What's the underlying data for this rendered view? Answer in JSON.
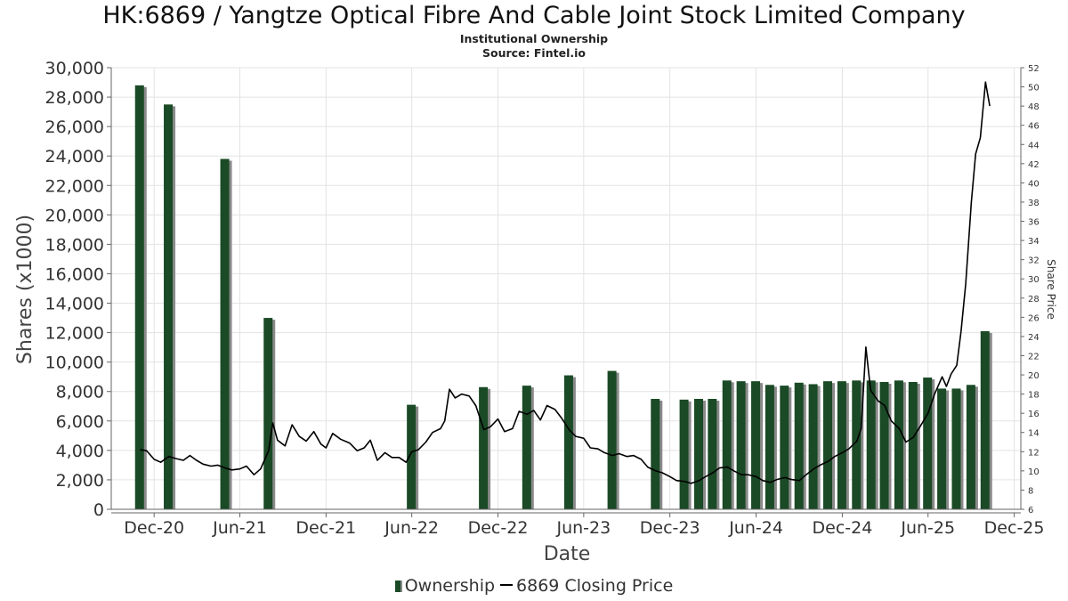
{
  "title": "HK:6869 / Yangtze Optical Fibre And Cable Joint Stock Limited Company",
  "subtitle": "Institutional Ownership",
  "source": "Source: Fintel.io",
  "legend": {
    "ownership": "Ownership",
    "price": "6869 Closing Price"
  },
  "colors": {
    "bar": "#1a4a26",
    "bar_shadow": "#8a8a8a",
    "line": "#000000",
    "grid": "#e3e3e3",
    "axis": "#666666"
  },
  "chart_data": {
    "type": "bar",
    "title": "HK:6869 / Yangtze Optical Fibre And Cable Joint Stock Limited Company",
    "xlabel": "Date",
    "ylabel": "Shares (x1000)",
    "y2label": "Share Price",
    "ylim": [
      0,
      30000
    ],
    "y2lim": [
      6,
      52
    ],
    "xlim": [
      "2020-09-01",
      "2025-12-15"
    ],
    "grid": true,
    "legend_position": "bottom",
    "y_ticks": [
      0,
      2000,
      4000,
      6000,
      8000,
      10000,
      12000,
      14000,
      16000,
      18000,
      20000,
      22000,
      24000,
      26000,
      28000,
      30000
    ],
    "y_tick_labels": [
      "0",
      "2,000",
      "4,000",
      "6,000",
      "8,000",
      "10,000",
      "12,000",
      "14,000",
      "16,000",
      "18,000",
      "20,000",
      "22,000",
      "24,000",
      "26,000",
      "28,000",
      "30,000"
    ],
    "y2_ticks": [
      6,
      8,
      10,
      12,
      14,
      16,
      18,
      20,
      22,
      24,
      26,
      28,
      30,
      32,
      34,
      36,
      38,
      40,
      42,
      44,
      46,
      48,
      50,
      52
    ],
    "x_ticks": [
      {
        "date": "2020-12-01",
        "label": "Dec-20"
      },
      {
        "date": "2021-06-01",
        "label": "Jun-21"
      },
      {
        "date": "2021-12-01",
        "label": "Dec-21"
      },
      {
        "date": "2022-06-01",
        "label": "Jun-22"
      },
      {
        "date": "2022-12-01",
        "label": "Dec-22"
      },
      {
        "date": "2023-06-01",
        "label": "Jun-23"
      },
      {
        "date": "2023-12-01",
        "label": "Dec-23"
      },
      {
        "date": "2024-06-01",
        "label": "Jun-24"
      },
      {
        "date": "2024-12-01",
        "label": "Dec-24"
      },
      {
        "date": "2025-06-01",
        "label": "Jun-25"
      },
      {
        "date": "2025-12-01",
        "label": "Dec-25"
      }
    ],
    "series": [
      {
        "name": "Ownership",
        "type": "bar",
        "axis": "left",
        "points": [
          {
            "x": "2020-10-31",
            "y": 28800
          },
          {
            "x": "2020-12-31",
            "y": 27500
          },
          {
            "x": "2021-04-30",
            "y": 23800
          },
          {
            "x": "2021-07-31",
            "y": 13000
          },
          {
            "x": "2022-05-31",
            "y": 7100
          },
          {
            "x": "2022-10-31",
            "y": 8300
          },
          {
            "x": "2023-01-31",
            "y": 8400
          },
          {
            "x": "2023-04-30",
            "y": 9100
          },
          {
            "x": "2023-07-31",
            "y": 9400
          },
          {
            "x": "2023-10-31",
            "y": 7500
          },
          {
            "x": "2023-12-31",
            "y": 7450
          },
          {
            "x": "2024-01-31",
            "y": 7500
          },
          {
            "x": "2024-02-29",
            "y": 7500
          },
          {
            "x": "2024-03-31",
            "y": 8750
          },
          {
            "x": "2024-04-30",
            "y": 8700
          },
          {
            "x": "2024-05-31",
            "y": 8700
          },
          {
            "x": "2024-06-30",
            "y": 8450
          },
          {
            "x": "2024-07-31",
            "y": 8400
          },
          {
            "x": "2024-08-31",
            "y": 8600
          },
          {
            "x": "2024-09-30",
            "y": 8500
          },
          {
            "x": "2024-10-31",
            "y": 8700
          },
          {
            "x": "2024-11-30",
            "y": 8700
          },
          {
            "x": "2024-12-31",
            "y": 8750
          },
          {
            "x": "2025-01-31",
            "y": 8750
          },
          {
            "x": "2025-02-28",
            "y": 8650
          },
          {
            "x": "2025-03-31",
            "y": 8750
          },
          {
            "x": "2025-04-30",
            "y": 8650
          },
          {
            "x": "2025-05-31",
            "y": 8950
          },
          {
            "x": "2025-06-30",
            "y": 8200
          },
          {
            "x": "2025-07-31",
            "y": 8200
          },
          {
            "x": "2025-08-31",
            "y": 8450
          },
          {
            "x": "2025-09-30",
            "y": 12100
          }
        ]
      },
      {
        "name": "6869 Closing Price",
        "type": "line",
        "axis": "right",
        "points": [
          {
            "x": "2020-11-01",
            "y": 12.2
          },
          {
            "x": "2020-11-15",
            "y": 12.1
          },
          {
            "x": "2020-12-01",
            "y": 11.2
          },
          {
            "x": "2020-12-15",
            "y": 10.9
          },
          {
            "x": "2021-01-01",
            "y": 11.5
          },
          {
            "x": "2021-01-15",
            "y": 11.3
          },
          {
            "x": "2021-02-01",
            "y": 11.1
          },
          {
            "x": "2021-02-15",
            "y": 11.6
          },
          {
            "x": "2021-03-01",
            "y": 11.1
          },
          {
            "x": "2021-03-15",
            "y": 10.7
          },
          {
            "x": "2021-04-01",
            "y": 10.5
          },
          {
            "x": "2021-04-15",
            "y": 10.6
          },
          {
            "x": "2021-05-01",
            "y": 10.3
          },
          {
            "x": "2021-05-15",
            "y": 10.1
          },
          {
            "x": "2021-06-01",
            "y": 10.2
          },
          {
            "x": "2021-06-15",
            "y": 10.5
          },
          {
            "x": "2021-07-01",
            "y": 9.6
          },
          {
            "x": "2021-07-15",
            "y": 10.2
          },
          {
            "x": "2021-08-01",
            "y": 12.1
          },
          {
            "x": "2021-08-10",
            "y": 15.0
          },
          {
            "x": "2021-08-20",
            "y": 13.2
          },
          {
            "x": "2021-09-05",
            "y": 12.6
          },
          {
            "x": "2021-09-20",
            "y": 14.8
          },
          {
            "x": "2021-10-05",
            "y": 13.6
          },
          {
            "x": "2021-10-20",
            "y": 13.1
          },
          {
            "x": "2021-11-05",
            "y": 14.1
          },
          {
            "x": "2021-11-20",
            "y": 12.8
          },
          {
            "x": "2021-12-01",
            "y": 12.4
          },
          {
            "x": "2021-12-15",
            "y": 13.9
          },
          {
            "x": "2022-01-01",
            "y": 13.3
          },
          {
            "x": "2022-01-20",
            "y": 12.9
          },
          {
            "x": "2022-02-05",
            "y": 12.1
          },
          {
            "x": "2022-02-20",
            "y": 12.4
          },
          {
            "x": "2022-03-05",
            "y": 13.2
          },
          {
            "x": "2022-03-20",
            "y": 11.1
          },
          {
            "x": "2022-04-05",
            "y": 11.9
          },
          {
            "x": "2022-04-20",
            "y": 11.4
          },
          {
            "x": "2022-05-05",
            "y": 11.4
          },
          {
            "x": "2022-05-20",
            "y": 10.9
          },
          {
            "x": "2022-06-01",
            "y": 12.0
          },
          {
            "x": "2022-06-15",
            "y": 12.2
          },
          {
            "x": "2022-07-01",
            "y": 13.0
          },
          {
            "x": "2022-07-15",
            "y": 14.0
          },
          {
            "x": "2022-08-01",
            "y": 14.4
          },
          {
            "x": "2022-08-10",
            "y": 15.2
          },
          {
            "x": "2022-08-20",
            "y": 18.5
          },
          {
            "x": "2022-09-01",
            "y": 17.6
          },
          {
            "x": "2022-09-15",
            "y": 18.0
          },
          {
            "x": "2022-10-01",
            "y": 17.8
          },
          {
            "x": "2022-10-15",
            "y": 16.8
          },
          {
            "x": "2022-11-01",
            "y": 14.3
          },
          {
            "x": "2022-11-15",
            "y": 14.6
          },
          {
            "x": "2022-12-01",
            "y": 15.4
          },
          {
            "x": "2022-12-15",
            "y": 14.1
          },
          {
            "x": "2023-01-01",
            "y": 14.4
          },
          {
            "x": "2023-01-15",
            "y": 16.2
          },
          {
            "x": "2023-02-01",
            "y": 15.9
          },
          {
            "x": "2023-02-15",
            "y": 16.3
          },
          {
            "x": "2023-03-01",
            "y": 15.3
          },
          {
            "x": "2023-03-15",
            "y": 16.8
          },
          {
            "x": "2023-04-01",
            "y": 16.4
          },
          {
            "x": "2023-04-15",
            "y": 15.5
          },
          {
            "x": "2023-05-01",
            "y": 14.3
          },
          {
            "x": "2023-05-15",
            "y": 13.6
          },
          {
            "x": "2023-06-01",
            "y": 13.4
          },
          {
            "x": "2023-06-15",
            "y": 12.4
          },
          {
            "x": "2023-07-01",
            "y": 12.3
          },
          {
            "x": "2023-07-15",
            "y": 11.9
          },
          {
            "x": "2023-08-01",
            "y": 11.6
          },
          {
            "x": "2023-08-15",
            "y": 11.8
          },
          {
            "x": "2023-09-01",
            "y": 11.5
          },
          {
            "x": "2023-09-15",
            "y": 11.6
          },
          {
            "x": "2023-10-01",
            "y": 11.2
          },
          {
            "x": "2023-10-15",
            "y": 10.4
          },
          {
            "x": "2023-11-01",
            "y": 10.0
          },
          {
            "x": "2023-11-15",
            "y": 9.8
          },
          {
            "x": "2023-12-01",
            "y": 9.4
          },
          {
            "x": "2023-12-15",
            "y": 9.0
          },
          {
            "x": "2024-01-01",
            "y": 8.9
          },
          {
            "x": "2024-01-15",
            "y": 8.7
          },
          {
            "x": "2024-02-01",
            "y": 9.0
          },
          {
            "x": "2024-02-15",
            "y": 9.4
          },
          {
            "x": "2024-03-01",
            "y": 9.8
          },
          {
            "x": "2024-03-15",
            "y": 10.3
          },
          {
            "x": "2024-04-01",
            "y": 10.4
          },
          {
            "x": "2024-04-15",
            "y": 10.0
          },
          {
            "x": "2024-05-01",
            "y": 9.6
          },
          {
            "x": "2024-05-15",
            "y": 9.6
          },
          {
            "x": "2024-06-01",
            "y": 9.4
          },
          {
            "x": "2024-06-15",
            "y": 9.0
          },
          {
            "x": "2024-07-01",
            "y": 8.8
          },
          {
            "x": "2024-07-15",
            "y": 9.1
          },
          {
            "x": "2024-08-01",
            "y": 9.3
          },
          {
            "x": "2024-08-15",
            "y": 9.1
          },
          {
            "x": "2024-09-01",
            "y": 9.0
          },
          {
            "x": "2024-09-15",
            "y": 9.6
          },
          {
            "x": "2024-10-01",
            "y": 10.2
          },
          {
            "x": "2024-10-15",
            "y": 10.6
          },
          {
            "x": "2024-11-01",
            "y": 11.0
          },
          {
            "x": "2024-11-15",
            "y": 11.5
          },
          {
            "x": "2024-12-01",
            "y": 11.9
          },
          {
            "x": "2024-12-15",
            "y": 12.3
          },
          {
            "x": "2025-01-01",
            "y": 13.1
          },
          {
            "x": "2025-01-10",
            "y": 14.4
          },
          {
            "x": "2025-01-20",
            "y": 22.9
          },
          {
            "x": "2025-01-30",
            "y": 18.4
          },
          {
            "x": "2025-02-15",
            "y": 17.3
          },
          {
            "x": "2025-03-01",
            "y": 16.8
          },
          {
            "x": "2025-03-15",
            "y": 15.2
          },
          {
            "x": "2025-04-01",
            "y": 14.4
          },
          {
            "x": "2025-04-15",
            "y": 13.0
          },
          {
            "x": "2025-05-01",
            "y": 13.5
          },
          {
            "x": "2025-05-15",
            "y": 14.6
          },
          {
            "x": "2025-06-01",
            "y": 16.0
          },
          {
            "x": "2025-06-15",
            "y": 18.0
          },
          {
            "x": "2025-07-01",
            "y": 19.8
          },
          {
            "x": "2025-07-10",
            "y": 18.8
          },
          {
            "x": "2025-07-20",
            "y": 20.1
          },
          {
            "x": "2025-08-01",
            "y": 21.0
          },
          {
            "x": "2025-08-10",
            "y": 24.5
          },
          {
            "x": "2025-08-20",
            "y": 29.5
          },
          {
            "x": "2025-09-01",
            "y": 38.0
          },
          {
            "x": "2025-09-10",
            "y": 43.0
          },
          {
            "x": "2025-09-20",
            "y": 44.7
          },
          {
            "x": "2025-10-01",
            "y": 50.5
          },
          {
            "x": "2025-10-10",
            "y": 48.0
          }
        ]
      }
    ]
  }
}
